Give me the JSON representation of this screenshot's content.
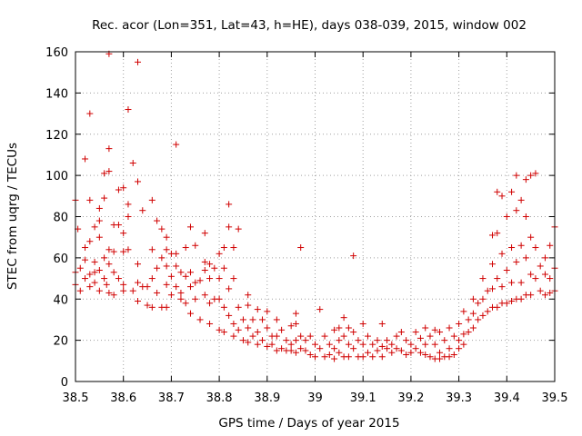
{
  "chart_data": {
    "type": "scatter",
    "title": "Rec. acor (Lon=351, Lat=43, h=HE), days 038-039, 2015, window 002",
    "xlabel": "GPS time / Days of year 2015",
    "ylabel": "STEC from uqrg / TECUs",
    "xlim": [
      38.5,
      39.5
    ],
    "ylim": [
      0,
      160
    ],
    "xticks": [
      "38.5",
      "38.6",
      "38.7",
      "38.8",
      "38.9",
      "39",
      "39.1",
      "39.2",
      "39.3",
      "39.4",
      "39.5"
    ],
    "yticks": [
      "0",
      "20",
      "40",
      "60",
      "80",
      "100",
      "120",
      "140",
      "160"
    ],
    "grid": true,
    "marker": "plus",
    "color": "#d00000",
    "series": [
      {
        "name": "STEC",
        "points": [
          [
            38.5,
            88
          ],
          [
            38.5,
            53
          ],
          [
            38.5,
            47
          ],
          [
            38.505,
            74
          ],
          [
            38.51,
            55
          ],
          [
            38.51,
            44
          ],
          [
            38.52,
            108
          ],
          [
            38.52,
            65
          ],
          [
            38.52,
            59
          ],
          [
            38.52,
            50
          ],
          [
            38.53,
            130
          ],
          [
            38.53,
            88
          ],
          [
            38.53,
            68
          ],
          [
            38.53,
            52
          ],
          [
            38.53,
            46
          ],
          [
            38.54,
            75
          ],
          [
            38.54,
            58
          ],
          [
            38.54,
            53
          ],
          [
            38.54,
            48
          ],
          [
            38.55,
            84
          ],
          [
            38.55,
            78
          ],
          [
            38.55,
            70
          ],
          [
            38.55,
            54
          ],
          [
            38.55,
            44
          ],
          [
            38.56,
            101
          ],
          [
            38.56,
            89
          ],
          [
            38.56,
            60
          ],
          [
            38.56,
            50
          ],
          [
            38.565,
            47
          ],
          [
            38.57,
            159
          ],
          [
            38.57,
            113
          ],
          [
            38.57,
            102
          ],
          [
            38.57,
            64
          ],
          [
            38.57,
            57
          ],
          [
            38.57,
            43
          ],
          [
            38.58,
            76
          ],
          [
            38.58,
            63
          ],
          [
            38.58,
            53
          ],
          [
            38.58,
            42
          ],
          [
            38.59,
            93
          ],
          [
            38.59,
            76
          ],
          [
            38.59,
            50
          ],
          [
            38.6,
            94
          ],
          [
            38.6,
            72
          ],
          [
            38.6,
            63
          ],
          [
            38.6,
            47
          ],
          [
            38.6,
            44
          ],
          [
            38.61,
            132
          ],
          [
            38.61,
            86
          ],
          [
            38.61,
            80
          ],
          [
            38.61,
            64
          ],
          [
            38.62,
            106
          ],
          [
            38.62,
            44
          ],
          [
            38.63,
            155
          ],
          [
            38.63,
            97
          ],
          [
            38.63,
            57
          ],
          [
            38.63,
            48
          ],
          [
            38.63,
            39
          ],
          [
            38.64,
            83
          ],
          [
            38.64,
            46
          ],
          [
            38.65,
            46
          ],
          [
            38.65,
            37
          ],
          [
            38.66,
            88
          ],
          [
            38.66,
            64
          ],
          [
            38.66,
            50
          ],
          [
            38.66,
            36
          ],
          [
            38.67,
            78
          ],
          [
            38.67,
            55
          ],
          [
            38.67,
            43
          ],
          [
            38.68,
            74
          ],
          [
            38.68,
            60
          ],
          [
            38.68,
            36
          ],
          [
            38.69,
            70
          ],
          [
            38.69,
            64
          ],
          [
            38.69,
            56
          ],
          [
            38.69,
            47
          ],
          [
            38.69,
            36
          ],
          [
            38.7,
            62
          ],
          [
            38.7,
            51
          ],
          [
            38.7,
            42
          ],
          [
            38.71,
            115
          ],
          [
            38.71,
            62
          ],
          [
            38.71,
            56
          ],
          [
            38.71,
            46
          ],
          [
            38.72,
            53
          ],
          [
            38.72,
            43
          ],
          [
            38.72,
            40
          ],
          [
            38.73,
            65
          ],
          [
            38.73,
            51
          ],
          [
            38.73,
            38
          ],
          [
            38.74,
            75
          ],
          [
            38.74,
            53
          ],
          [
            38.74,
            46
          ],
          [
            38.74,
            33
          ],
          [
            38.75,
            66
          ],
          [
            38.75,
            48
          ],
          [
            38.75,
            40
          ],
          [
            38.76,
            49
          ],
          [
            38.76,
            30
          ],
          [
            38.77,
            72
          ],
          [
            38.77,
            58
          ],
          [
            38.77,
            54
          ],
          [
            38.77,
            42
          ],
          [
            38.78,
            57
          ],
          [
            38.78,
            50
          ],
          [
            38.78,
            38
          ],
          [
            38.78,
            28
          ],
          [
            38.79,
            55
          ],
          [
            38.79,
            40
          ],
          [
            38.8,
            62
          ],
          [
            38.8,
            50
          ],
          [
            38.8,
            40
          ],
          [
            38.8,
            25
          ],
          [
            38.81,
            65
          ],
          [
            38.81,
            55
          ],
          [
            38.81,
            36
          ],
          [
            38.81,
            24
          ],
          [
            38.82,
            86
          ],
          [
            38.82,
            75
          ],
          [
            38.82,
            45
          ],
          [
            38.82,
            32
          ],
          [
            38.83,
            65
          ],
          [
            38.83,
            50
          ],
          [
            38.83,
            28
          ],
          [
            38.83,
            22
          ],
          [
            38.84,
            74
          ],
          [
            38.84,
            36
          ],
          [
            38.84,
            25
          ],
          [
            38.85,
            30
          ],
          [
            38.85,
            20
          ],
          [
            38.86,
            42
          ],
          [
            38.86,
            37
          ],
          [
            38.86,
            26
          ],
          [
            38.86,
            19
          ],
          [
            38.87,
            30
          ],
          [
            38.87,
            22
          ],
          [
            38.88,
            35
          ],
          [
            38.88,
            24
          ],
          [
            38.88,
            18
          ],
          [
            38.89,
            30
          ],
          [
            38.89,
            20
          ],
          [
            38.9,
            34
          ],
          [
            38.9,
            26
          ],
          [
            38.9,
            17
          ],
          [
            38.91,
            22
          ],
          [
            38.91,
            18
          ],
          [
            38.92,
            30
          ],
          [
            38.92,
            22
          ],
          [
            38.92,
            15
          ],
          [
            38.93,
            25
          ],
          [
            38.93,
            16
          ],
          [
            38.94,
            20
          ],
          [
            38.94,
            15
          ],
          [
            38.95,
            27
          ],
          [
            38.95,
            18
          ],
          [
            38.95,
            15
          ],
          [
            38.96,
            33
          ],
          [
            38.96,
            28
          ],
          [
            38.96,
            20
          ],
          [
            38.96,
            14
          ],
          [
            38.97,
            65
          ],
          [
            38.97,
            22
          ],
          [
            38.97,
            16
          ],
          [
            38.98,
            20
          ],
          [
            38.98,
            15
          ],
          [
            38.99,
            22
          ],
          [
            38.99,
            13
          ],
          [
            39.0,
            18
          ],
          [
            39.0,
            12
          ],
          [
            39.01,
            35
          ],
          [
            39.01,
            16
          ],
          [
            39.02,
            22
          ],
          [
            39.02,
            12
          ],
          [
            39.03,
            18
          ],
          [
            39.03,
            13
          ],
          [
            39.04,
            25
          ],
          [
            39.04,
            16
          ],
          [
            39.04,
            11
          ],
          [
            39.05,
            26
          ],
          [
            39.05,
            20
          ],
          [
            39.05,
            14
          ],
          [
            39.06,
            31
          ],
          [
            39.06,
            22
          ],
          [
            39.06,
            12
          ],
          [
            39.07,
            26
          ],
          [
            39.07,
            18
          ],
          [
            39.07,
            12
          ],
          [
            39.08,
            61
          ],
          [
            39.08,
            24
          ],
          [
            39.08,
            16
          ],
          [
            39.09,
            20
          ],
          [
            39.09,
            12
          ],
          [
            39.1,
            28
          ],
          [
            39.1,
            18
          ],
          [
            39.1,
            12
          ],
          [
            39.11,
            22
          ],
          [
            39.11,
            14
          ],
          [
            39.12,
            18
          ],
          [
            39.12,
            12
          ],
          [
            39.13,
            20
          ],
          [
            39.13,
            15
          ],
          [
            39.14,
            28
          ],
          [
            39.14,
            17
          ],
          [
            39.14,
            12
          ],
          [
            39.15,
            20
          ],
          [
            39.15,
            16
          ],
          [
            39.16,
            18
          ],
          [
            39.16,
            14
          ],
          [
            39.17,
            22
          ],
          [
            39.17,
            16
          ],
          [
            39.18,
            24
          ],
          [
            39.18,
            15
          ],
          [
            39.19,
            20
          ],
          [
            39.19,
            13
          ],
          [
            39.2,
            18
          ],
          [
            39.2,
            14
          ],
          [
            39.21,
            24
          ],
          [
            39.21,
            16
          ],
          [
            39.22,
            21
          ],
          [
            39.22,
            14
          ],
          [
            39.23,
            26
          ],
          [
            39.23,
            18
          ],
          [
            39.23,
            13
          ],
          [
            39.24,
            22
          ],
          [
            39.24,
            12
          ],
          [
            39.25,
            25
          ],
          [
            39.25,
            18
          ],
          [
            39.25,
            11
          ],
          [
            39.26,
            24
          ],
          [
            39.26,
            14
          ],
          [
            39.26,
            11
          ],
          [
            39.27,
            20
          ],
          [
            39.27,
            12
          ],
          [
            39.28,
            26
          ],
          [
            39.28,
            16
          ],
          [
            39.28,
            12
          ],
          [
            39.29,
            22
          ],
          [
            39.29,
            13
          ],
          [
            39.3,
            28
          ],
          [
            39.3,
            20
          ],
          [
            39.3,
            16
          ],
          [
            39.31,
            34
          ],
          [
            39.31,
            23
          ],
          [
            39.31,
            18
          ],
          [
            39.32,
            30
          ],
          [
            39.32,
            24
          ],
          [
            39.33,
            40
          ],
          [
            39.33,
            33
          ],
          [
            39.33,
            26
          ],
          [
            39.34,
            38
          ],
          [
            39.34,
            30
          ],
          [
            39.35,
            50
          ],
          [
            39.35,
            40
          ],
          [
            39.35,
            32
          ],
          [
            39.36,
            44
          ],
          [
            39.36,
            34
          ],
          [
            39.37,
            71
          ],
          [
            39.37,
            57
          ],
          [
            39.37,
            45
          ],
          [
            39.37,
            36
          ],
          [
            39.38,
            92
          ],
          [
            39.38,
            72
          ],
          [
            39.38,
            50
          ],
          [
            39.38,
            36
          ],
          [
            39.39,
            90
          ],
          [
            39.39,
            62
          ],
          [
            39.39,
            46
          ],
          [
            39.39,
            38
          ],
          [
            39.4,
            80
          ],
          [
            39.4,
            54
          ],
          [
            39.4,
            38
          ],
          [
            39.41,
            92
          ],
          [
            39.41,
            65
          ],
          [
            39.41,
            48
          ],
          [
            39.41,
            39
          ],
          [
            39.42,
            100
          ],
          [
            39.42,
            83
          ],
          [
            39.42,
            58
          ],
          [
            39.42,
            40
          ],
          [
            39.43,
            88
          ],
          [
            39.43,
            66
          ],
          [
            39.43,
            48
          ],
          [
            39.43,
            40
          ],
          [
            39.44,
            98
          ],
          [
            39.44,
            80
          ],
          [
            39.44,
            60
          ],
          [
            39.44,
            42
          ],
          [
            39.45,
            100
          ],
          [
            39.45,
            70
          ],
          [
            39.45,
            52
          ],
          [
            39.45,
            42
          ],
          [
            39.46,
            101
          ],
          [
            39.46,
            65
          ],
          [
            39.46,
            50
          ],
          [
            39.47,
            56
          ],
          [
            39.47,
            44
          ],
          [
            39.48,
            60
          ],
          [
            39.48,
            52
          ],
          [
            39.48,
            42
          ],
          [
            39.49,
            66
          ],
          [
            39.49,
            50
          ],
          [
            39.49,
            43
          ],
          [
            39.5,
            75
          ],
          [
            39.5,
            55
          ],
          [
            39.5,
            44
          ]
        ]
      }
    ]
  }
}
